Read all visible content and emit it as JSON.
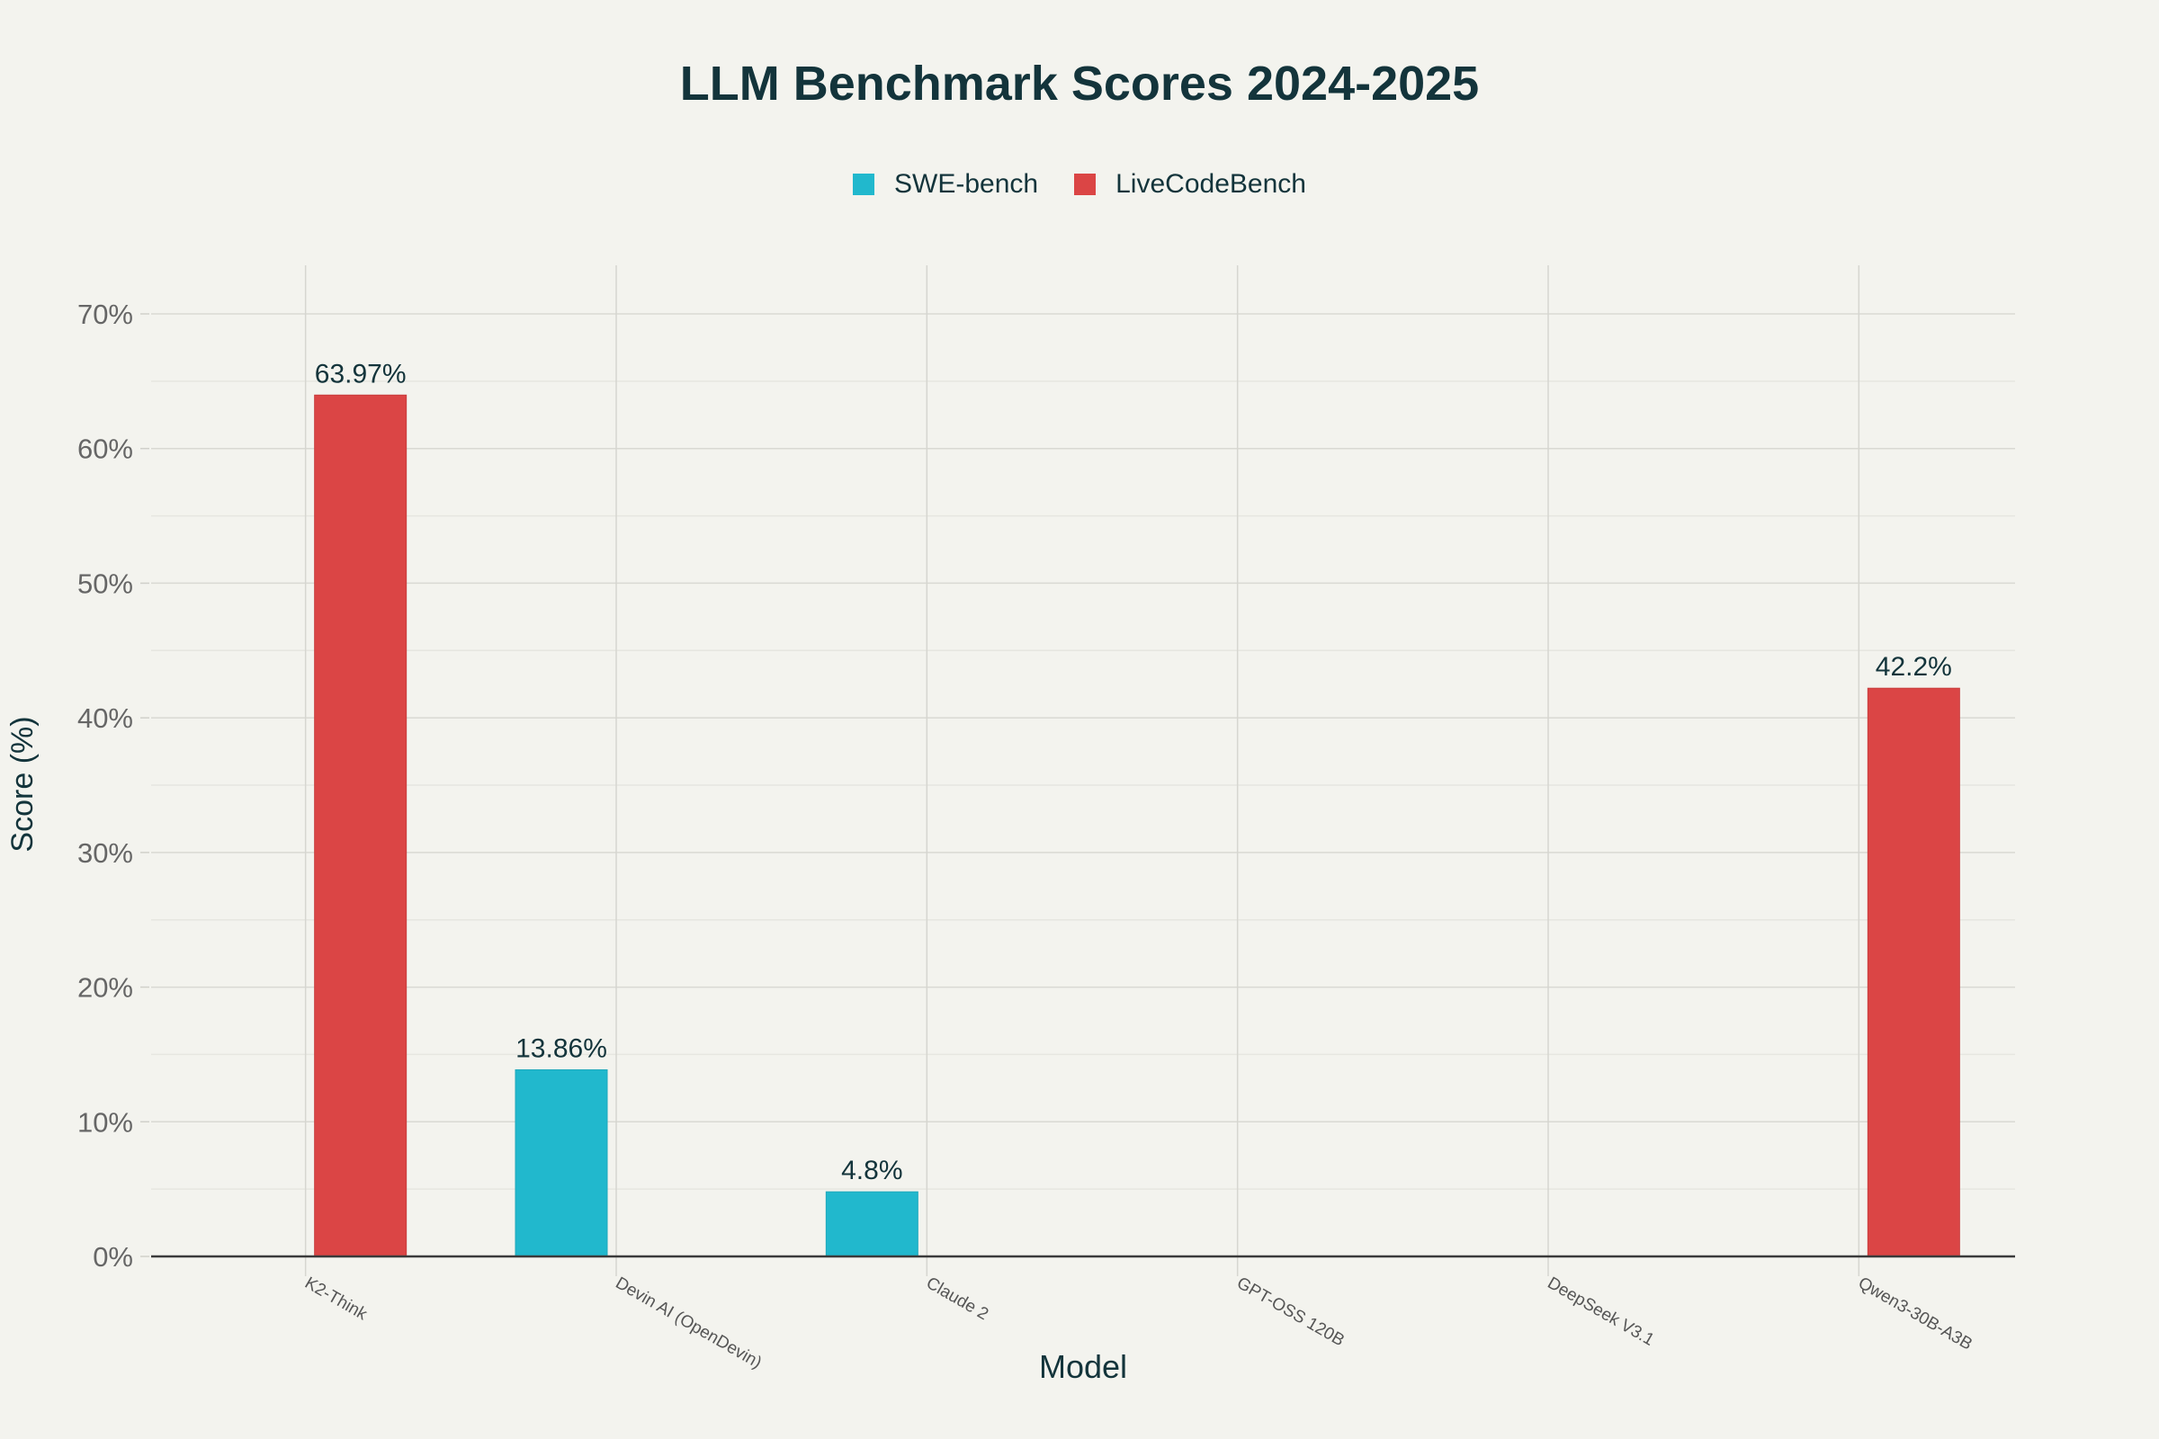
{
  "chart_data": {
    "type": "bar",
    "title": "LLM Benchmark Scores 2024-2025",
    "xlabel": "Model",
    "ylabel": "Score (%)",
    "categories": [
      "K2-Think",
      "Devin AI (OpenDevin)",
      "Claude 2",
      "GPT-OSS 120B",
      "DeepSeek V3.1",
      "Qwen3-30B-A3B"
    ],
    "series": [
      {
        "name": "SWE-bench",
        "color": "#21B8CD",
        "values": [
          null,
          13.86,
          4.8,
          null,
          null,
          null
        ],
        "labels": [
          null,
          "13.86%",
          "4.8%",
          null,
          null,
          null
        ]
      },
      {
        "name": "LiveCodeBench",
        "color": "#DB4545",
        "values": [
          63.97,
          null,
          null,
          null,
          null,
          42.2
        ],
        "labels": [
          "63.97%",
          null,
          null,
          null,
          null,
          "42.2%"
        ]
      }
    ],
    "ylim": [
      0,
      70
    ],
    "yticks": [
      0,
      10,
      20,
      30,
      40,
      50,
      60,
      70
    ],
    "ytick_labels": [
      "0%",
      "10%",
      "20%",
      "30%",
      "40%",
      "50%",
      "60%",
      "70%"
    ],
    "grid": true,
    "legend_position": "top-center"
  }
}
